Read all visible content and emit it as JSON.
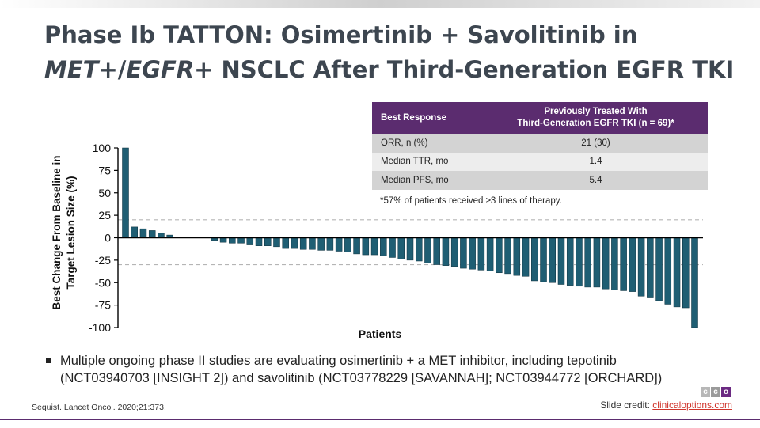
{
  "title": {
    "line1": "Phase Ib TATTON: Osimertinib + Savolitinib in",
    "met": "MET",
    "plus_slash": "+/",
    "egfr": "EGFR",
    "rest": "+ NSCLC After Third-Generation EGFR TKI"
  },
  "table": {
    "header_col1": "Best Response",
    "header_col2_line1": "Previously Treated With",
    "header_col2_line2": "Third-Generation EGFR TKI (n = 69)*",
    "rows": [
      {
        "label": "ORR, n (%)",
        "value": "21 (30)"
      },
      {
        "label": "Median TTR, mo",
        "value": "1.4"
      },
      {
        "label": "Median PFS, mo",
        "value": "5.4"
      }
    ],
    "footnote": "*57% of patients received ≥3 lines of therapy."
  },
  "chart_data": {
    "type": "bar",
    "title": "",
    "xlabel": "Patients",
    "ylabel_line1": "Best Change From Baseline in",
    "ylabel_line2": "Target Lesion Size (%)",
    "ylim": [
      -100,
      100
    ],
    "yticks": [
      "100",
      "75",
      "50",
      "25",
      "0",
      "-25",
      "-50",
      "-75",
      "-100"
    ],
    "ytick_values": [
      100,
      75,
      50,
      25,
      0,
      -25,
      -50,
      -75,
      -100
    ],
    "reference_lines": [
      20,
      -30
    ],
    "bar_color": "#1f5e73",
    "values": [
      100,
      12,
      10,
      8,
      5,
      3,
      0,
      0,
      0,
      0,
      -3,
      -5,
      -6,
      -6,
      -8,
      -9,
      -9,
      -10,
      -12,
      -12,
      -13,
      -13,
      -14,
      -14,
      -15,
      -16,
      -18,
      -19,
      -19,
      -20,
      -22,
      -24,
      -25,
      -26,
      -28,
      -30,
      -31,
      -32,
      -34,
      -35,
      -36,
      -37,
      -39,
      -40,
      -42,
      -43,
      -48,
      -49,
      -50,
      -52,
      -53,
      -54,
      -55,
      -55,
      -57,
      -58,
      -59,
      -60,
      -65,
      -67,
      -70,
      -74,
      -77,
      -78,
      -100
    ]
  },
  "bullet": {
    "line1": "Multiple ongoing phase II studies are evaluating osimertinib + a MET inhibitor, including tepotinib",
    "line2": "(NCT03940703 [INSIGHT 2]) and savolitinib (NCT03778229 [SAVANNAH]; NCT03944772 [ORCHARD])"
  },
  "citation": "Sequist. Lancet Oncol. 2020;21:373.",
  "credit": {
    "label": "Slide credit: ",
    "link": "clinicaloptions.com"
  },
  "logo": [
    "c",
    "c",
    "o"
  ]
}
